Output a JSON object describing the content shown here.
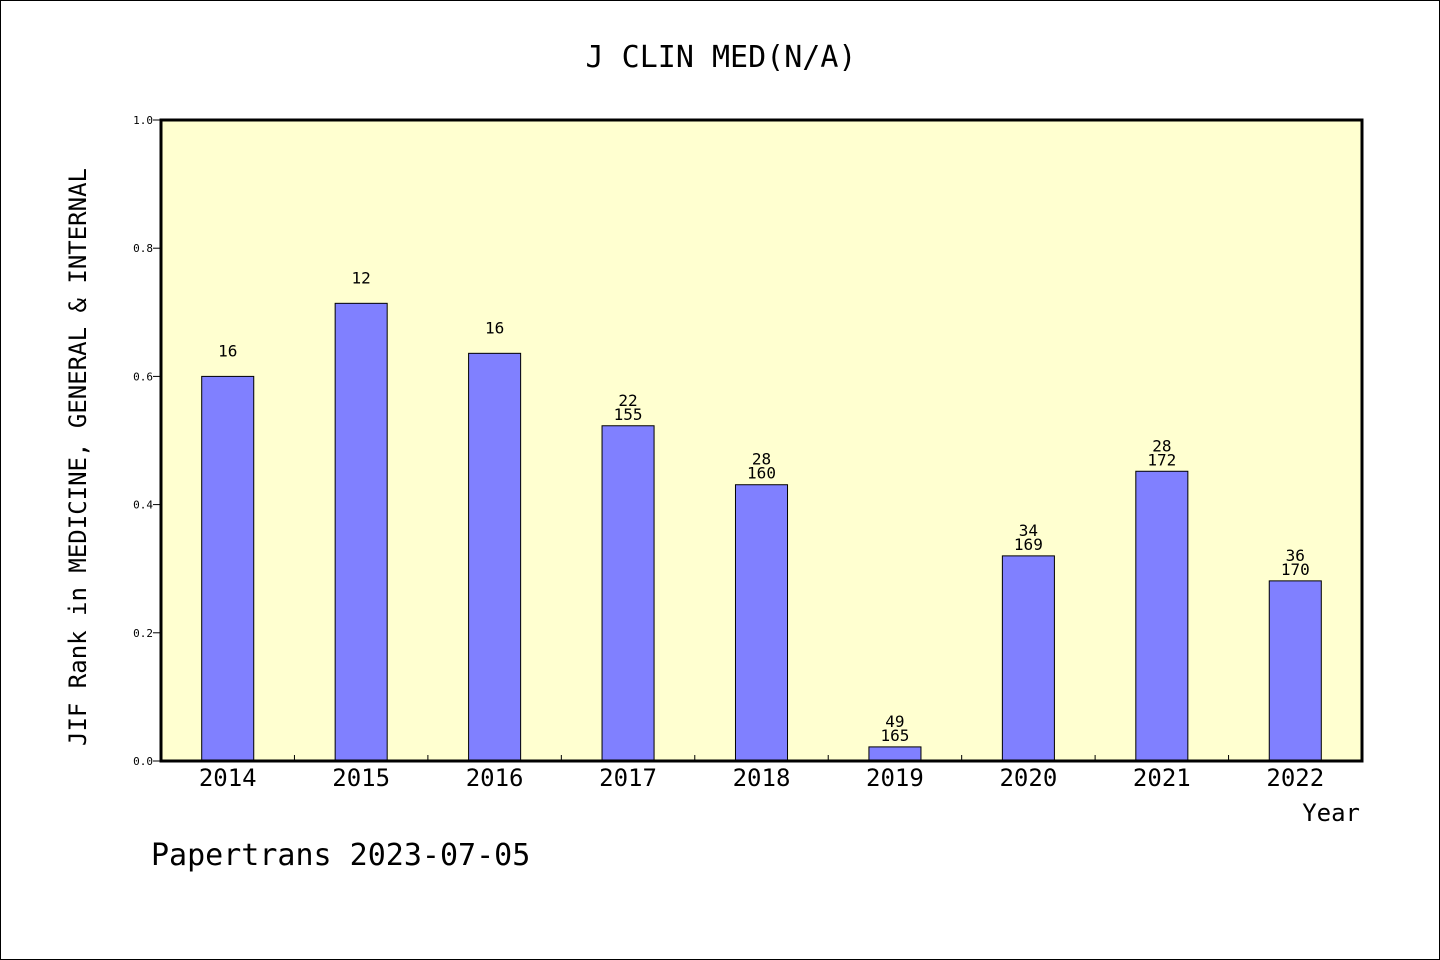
{
  "chart_data": {
    "type": "bar",
    "title": "J CLIN MED(N/A)",
    "xlabel": "Year",
    "ylabel": "JIF Rank in MEDICINE, GENERAL & INTERNAL",
    "ylim": [
      0,
      1.0
    ],
    "yticks": [
      "0.0",
      "0.2",
      "0.4",
      "0.6",
      "0.8",
      "1.0"
    ],
    "categories": [
      "2014",
      "2015",
      "2016",
      "2017",
      "2018",
      "2019",
      "2020",
      "2021",
      "2022"
    ],
    "values": [
      0.6,
      0.714,
      0.636,
      0.523,
      0.431,
      0.022,
      0.32,
      0.452,
      0.281
    ],
    "labels_top": [
      "16",
      "12",
      "16",
      "22",
      "28",
      "49",
      "34",
      "28",
      "36"
    ],
    "labels_bottom": [
      "",
      "",
      "",
      "155",
      "160",
      "165",
      "169",
      "172",
      "170"
    ],
    "grid": false,
    "colors": {
      "bar": "#8080ff",
      "plot_background": "#ffffd0",
      "axis": "#000000"
    }
  },
  "footer": "Papertrans 2023-07-05"
}
